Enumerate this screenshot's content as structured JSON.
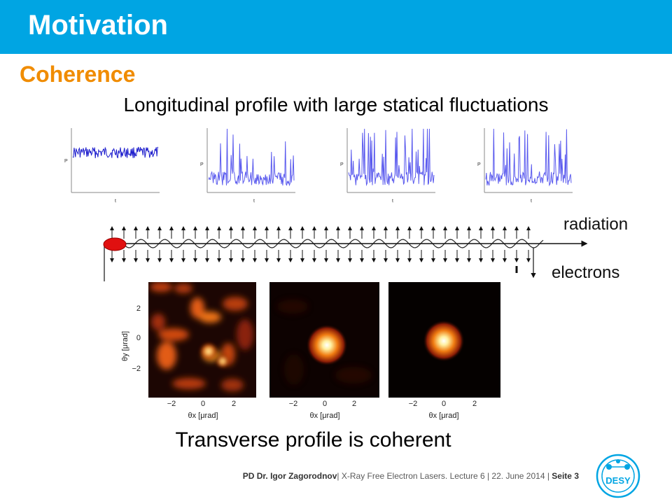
{
  "slide": {
    "title": "Motivation",
    "subtitle": "Coherence",
    "longitudinal_caption": "Longitudinal profile with large statical fluctuations",
    "transverse_caption": "Transverse profile is coherent"
  },
  "power_plots": {
    "axis_y": "P",
    "axis_x": "t"
  },
  "undulator": {
    "radiation_label": "radiation",
    "electrons_label": "electrons"
  },
  "angular_maps": {
    "ylabel": "θy [μrad]",
    "xlabel": "θx [μrad]",
    "yticks": [
      "2",
      "0",
      "−2"
    ],
    "xticks": [
      "−2",
      "0",
      "2"
    ]
  },
  "footer": {
    "author": "PD Dr. Igor Zagorodnov",
    "course": "| X-Ray Free Electron Lasers. Lecture 6",
    "date": "| 22. June 2014 |",
    "page": "Seite 3"
  },
  "logo": {
    "text": "DESY",
    "color": "#00a5e3"
  },
  "colors": {
    "header": "#00a5e3",
    "subtitle": "#f08c00",
    "trace_first": "#1a1acc",
    "trace": "#5a5aee"
  }
}
